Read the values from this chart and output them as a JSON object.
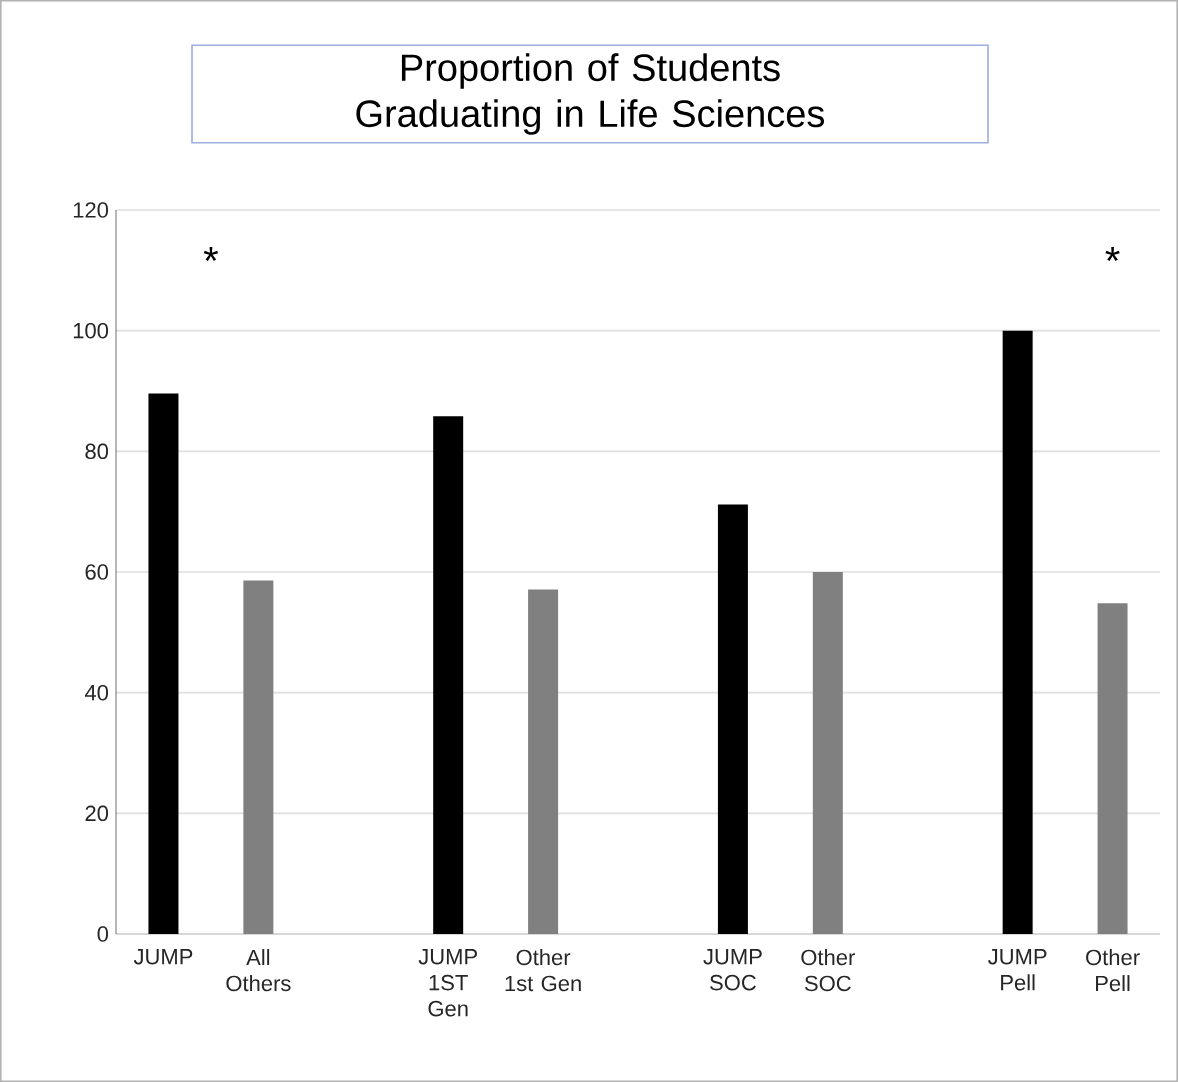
{
  "chart_data": {
    "type": "bar",
    "title": "Proportion of Students  Graduating in Life Sciences",
    "categories": [
      "JUMP",
      "All Others",
      null,
      "JUMP 1ST Gen",
      "Other 1st Gen",
      null,
      "JUMP SOC",
      "Other SOC",
      null,
      "JUMP Pell",
      "Other Pell"
    ],
    "values": [
      89.6,
      58.6,
      null,
      85.8,
      57.1,
      null,
      71.2,
      60,
      null,
      100,
      54.8
    ],
    "colors": [
      "#000000",
      "#808080",
      null,
      "#000000",
      "#808080",
      null,
      "#000000",
      "#808080",
      null,
      "#000000",
      "#808080"
    ],
    "ylim": [
      0,
      120
    ],
    "yticks": [
      0,
      20,
      40,
      60,
      80,
      100,
      120
    ],
    "grid": "y",
    "annotations": [
      "*",
      "*"
    ]
  }
}
